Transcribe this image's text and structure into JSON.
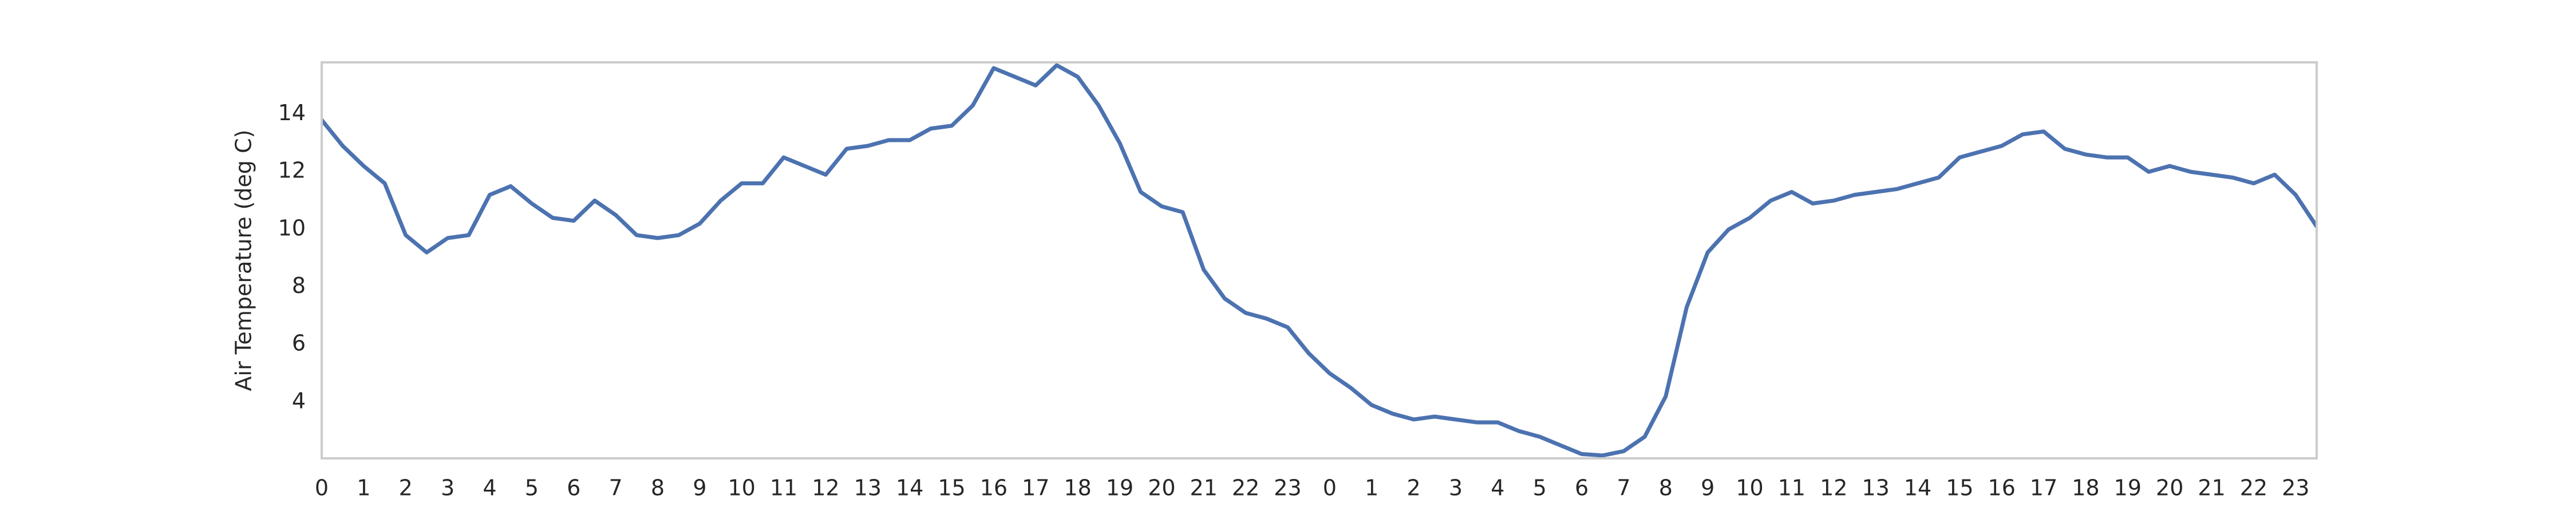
{
  "chart_data": {
    "type": "line",
    "y_label": "Air Temperature (deg C)",
    "x": [
      0,
      0.5,
      1,
      1.5,
      2,
      2.5,
      3,
      3.5,
      4,
      4.5,
      5,
      5.5,
      6,
      6.5,
      7,
      7.5,
      8,
      8.5,
      9,
      9.5,
      10,
      10.5,
      11,
      11.5,
      12,
      12.5,
      13,
      13.5,
      14,
      14.5,
      15,
      15.5,
      16,
      16.5,
      17,
      17.5,
      18,
      18.5,
      19,
      19.5,
      20,
      20.5,
      21,
      21.5,
      22,
      22.5,
      23,
      23.5,
      24,
      24.5,
      25,
      25.5,
      26,
      26.5,
      27,
      27.5,
      28,
      28.5,
      29,
      29.5,
      30,
      30.5,
      31,
      31.5,
      32,
      32.5,
      33,
      33.5,
      34,
      34.5,
      35,
      35.5,
      36,
      36.5,
      37,
      37.5,
      38,
      38.5,
      39,
      39.5,
      40,
      40.5,
      41,
      41.5,
      42,
      42.5,
      43,
      43.5,
      44,
      44.5,
      45,
      45.5,
      46,
      46.5,
      47,
      47.5
    ],
    "series": [
      {
        "name": "Air Temperature",
        "color": "#4c72b0",
        "values": [
          13.8,
          12.9,
          12.2,
          11.6,
          9.8,
          9.2,
          9.7,
          9.8,
          11.2,
          11.5,
          10.9,
          10.4,
          10.3,
          11.0,
          10.5,
          9.8,
          9.7,
          9.8,
          10.2,
          11.0,
          11.6,
          11.6,
          12.5,
          12.2,
          11.9,
          12.8,
          12.9,
          13.1,
          13.1,
          13.5,
          13.6,
          14.3,
          15.6,
          15.3,
          15.0,
          15.7,
          15.3,
          14.3,
          13.0,
          11.3,
          10.8,
          10.6,
          8.6,
          7.6,
          7.1,
          6.9,
          6.6,
          5.7,
          5.0,
          4.5,
          3.9,
          3.6,
          3.4,
          3.5,
          3.4,
          3.3,
          3.3,
          3.0,
          2.8,
          2.5,
          2.2,
          2.15,
          2.3,
          2.8,
          4.2,
          7.3,
          9.2,
          10.0,
          10.4,
          11.0,
          11.3,
          10.9,
          11.0,
          11.2,
          11.3,
          11.4,
          11.6,
          11.8,
          12.5,
          12.7,
          12.9,
          13.3,
          13.4,
          12.8,
          12.6,
          12.5,
          12.5,
          12.0,
          12.2,
          12.0,
          11.9,
          11.8,
          11.6,
          11.9,
          11.2,
          10.1
        ]
      }
    ],
    "xlim": [
      0,
      47.5
    ],
    "xticks": [
      0,
      1,
      2,
      3,
      4,
      5,
      6,
      7,
      8,
      9,
      10,
      11,
      12,
      13,
      14,
      15,
      16,
      17,
      18,
      19,
      20,
      21,
      22,
      23,
      {
        "value": 24,
        "label": "0"
      },
      {
        "value": 25,
        "label": "1"
      },
      {
        "value": 26,
        "label": "2"
      },
      {
        "value": 27,
        "label": "3"
      },
      {
        "value": 28,
        "label": "4"
      },
      {
        "value": 29,
        "label": "5"
      },
      {
        "value": 30,
        "label": "6"
      },
      {
        "value": 31,
        "label": "7"
      },
      {
        "value": 32,
        "label": "8"
      },
      {
        "value": 33,
        "label": "9"
      },
      {
        "value": 34,
        "label": "10"
      },
      {
        "value": 35,
        "label": "11"
      },
      {
        "value": 36,
        "label": "12"
      },
      {
        "value": 37,
        "label": "13"
      },
      {
        "value": 38,
        "label": "14"
      },
      {
        "value": 39,
        "label": "15"
      },
      {
        "value": 40,
        "label": "16"
      },
      {
        "value": 41,
        "label": "17"
      },
      {
        "value": 42,
        "label": "18"
      },
      {
        "value": 43,
        "label": "19"
      },
      {
        "value": 44,
        "label": "20"
      },
      {
        "value": 45,
        "label": "21"
      },
      {
        "value": 46,
        "label": "22"
      },
      {
        "value": 47,
        "label": "23"
      }
    ],
    "ylim": [
      2.05,
      15.8
    ],
    "yticks": [
      4,
      6,
      8,
      10,
      12,
      14
    ],
    "grid": false
  }
}
